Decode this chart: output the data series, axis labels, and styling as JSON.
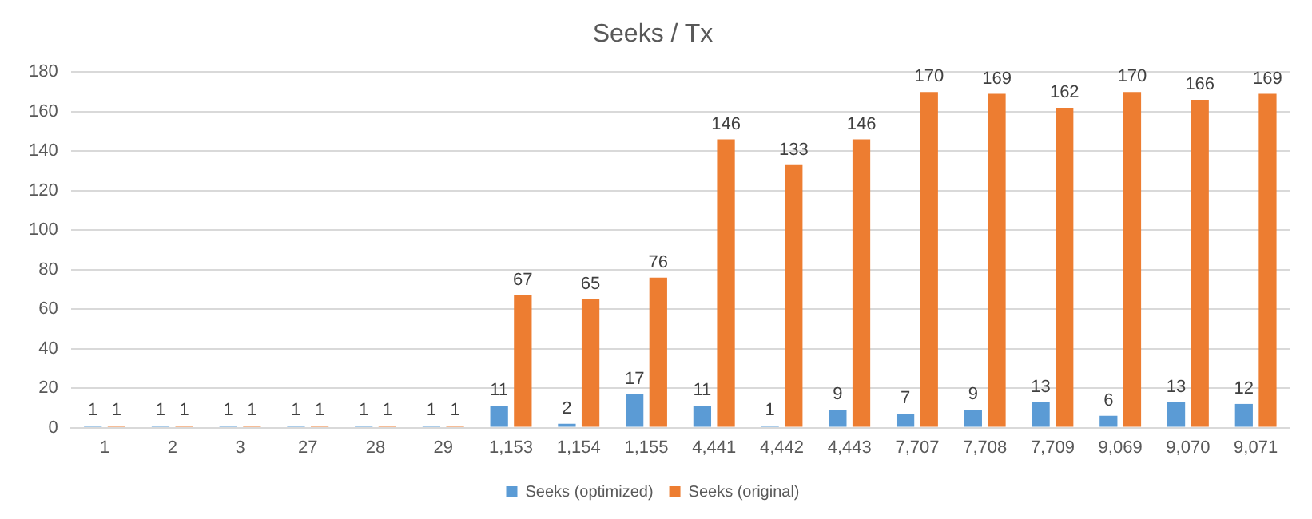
{
  "chart_data": {
    "type": "bar",
    "title": "Seeks / Tx",
    "categories": [
      "1",
      "2",
      "3",
      "27",
      "28",
      "29",
      "1,153",
      "1,154",
      "1,155",
      "4,441",
      "4,442",
      "4,443",
      "7,707",
      "7,708",
      "7,709",
      "9,069",
      "9,070",
      "9,071"
    ],
    "series": [
      {
        "name": "Seeks (optimized)",
        "color": "#5b9bd5",
        "values": [
          1,
          1,
          1,
          1,
          1,
          1,
          11,
          2,
          17,
          11,
          1,
          9,
          7,
          9,
          13,
          6,
          13,
          12
        ]
      },
      {
        "name": "Seeks (original)",
        "color": "#ed7d31",
        "values": [
          1,
          1,
          1,
          1,
          1,
          1,
          67,
          65,
          76,
          146,
          133,
          146,
          170,
          169,
          162,
          170,
          166,
          169
        ]
      }
    ],
    "ylim": [
      0,
      180
    ],
    "yticks": [
      0,
      20,
      40,
      60,
      80,
      100,
      120,
      140,
      160,
      180
    ],
    "grid": "y",
    "legend": "bottom",
    "data_labels": true
  }
}
